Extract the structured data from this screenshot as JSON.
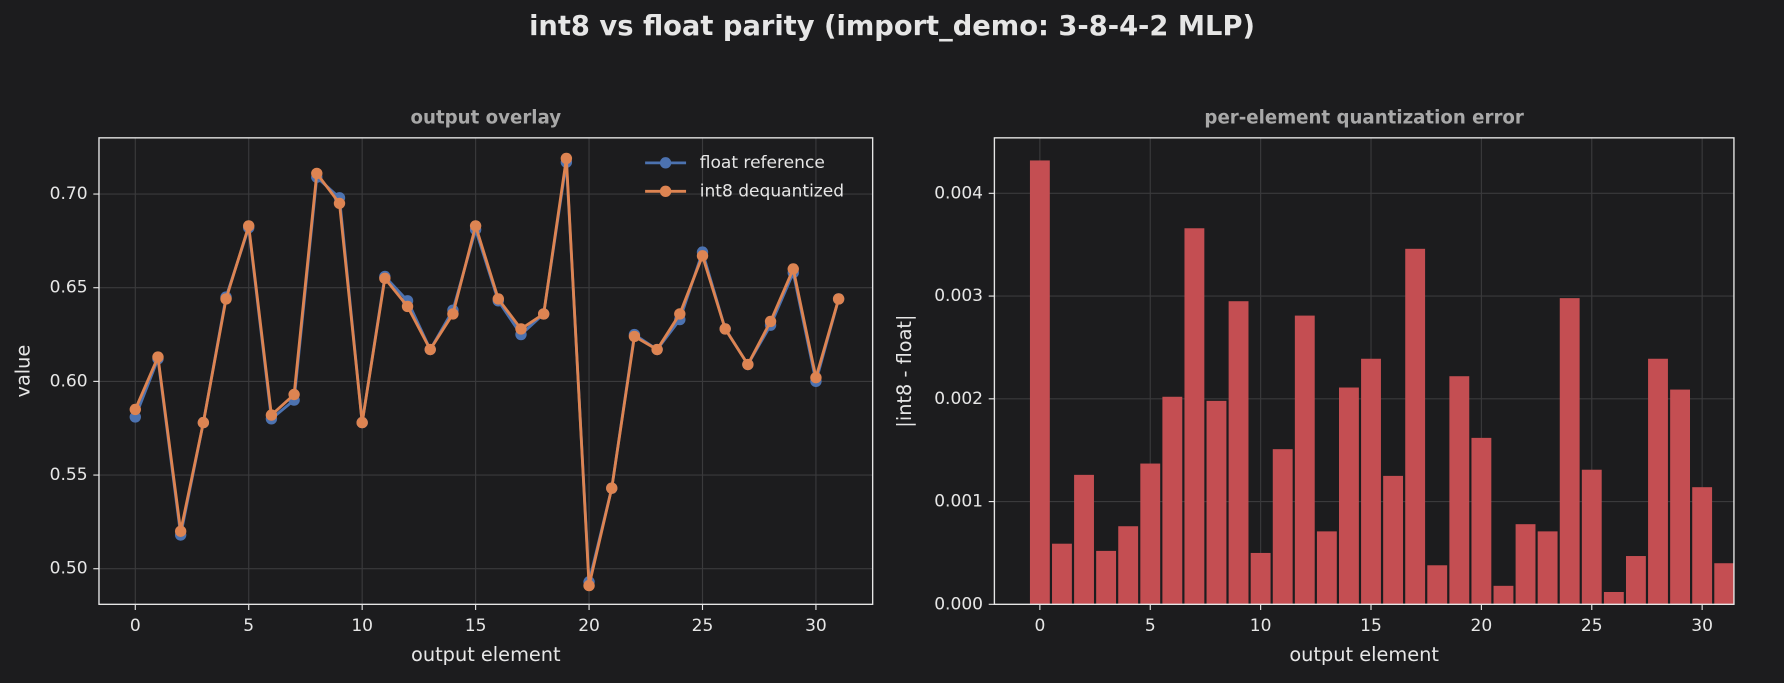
{
  "title": "int8 vs float parity  (import_demo: 3-8-4-2 MLP)",
  "chart_data": [
    {
      "type": "line",
      "title": "output overlay",
      "xlabel": "output element",
      "ylabel": "value",
      "x": [
        0,
        1,
        2,
        3,
        4,
        5,
        6,
        7,
        8,
        9,
        10,
        11,
        12,
        13,
        14,
        15,
        16,
        17,
        18,
        19,
        20,
        21,
        22,
        23,
        24,
        25,
        26,
        27,
        28,
        29,
        30,
        31
      ],
      "series": [
        {
          "name": "float reference",
          "color": "#4c72b0",
          "values": [
            0.581,
            0.612,
            0.518,
            0.578,
            0.645,
            0.682,
            0.58,
            0.59,
            0.709,
            0.698,
            0.578,
            0.656,
            0.643,
            0.617,
            0.638,
            0.681,
            0.643,
            0.625,
            0.636,
            0.717,
            0.493,
            0.543,
            0.625,
            0.617,
            0.633,
            0.669,
            0.628,
            0.609,
            0.63,
            0.658,
            0.6,
            0.644
          ]
        },
        {
          "name": "int8 dequantized",
          "color": "#dd8452",
          "values": [
            0.585,
            0.613,
            0.52,
            0.578,
            0.644,
            0.683,
            0.582,
            0.593,
            0.711,
            0.695,
            0.578,
            0.655,
            0.64,
            0.617,
            0.636,
            0.683,
            0.644,
            0.628,
            0.636,
            0.719,
            0.491,
            0.543,
            0.624,
            0.617,
            0.636,
            0.667,
            0.628,
            0.609,
            0.632,
            0.66,
            0.602,
            0.644
          ]
        }
      ],
      "xlim": [
        -1.6,
        32.5
      ],
      "xticks": [
        0,
        5,
        10,
        15,
        20,
        25,
        30
      ],
      "ylim": [
        0.481,
        0.73
      ],
      "yticks": [
        {
          "value": 0.5,
          "label": "0.50"
        },
        0.55,
        {
          "value": 0.6,
          "label": "0.60"
        },
        0.65,
        {
          "value": 0.7,
          "label": "0.70"
        }
      ],
      "grid": true,
      "legend": "upper right"
    },
    {
      "type": "bar",
      "title": "per-element quantization error",
      "xlabel": "output element",
      "ylabel": "|int8 - float|",
      "color": "#c44e52",
      "x": [
        0,
        1,
        2,
        3,
        4,
        5,
        6,
        7,
        8,
        9,
        10,
        11,
        12,
        13,
        14,
        15,
        16,
        17,
        18,
        19,
        20,
        21,
        22,
        23,
        24,
        25,
        26,
        27,
        28,
        29,
        30,
        31
      ],
      "values": [
        0.00432,
        0.00059,
        0.00126,
        0.00052,
        0.00076,
        0.00137,
        0.00202,
        0.00366,
        0.00198,
        0.00295,
        0.0005,
        0.00151,
        0.00281,
        0.00071,
        0.00211,
        0.00239,
        0.00125,
        0.00346,
        0.00038,
        0.00222,
        0.00162,
        0.00018,
        0.00078,
        0.00071,
        0.00298,
        0.00131,
        0.00012,
        0.00047,
        0.00239,
        0.00209,
        0.00114,
        0.0004
      ],
      "xlim": [
        -2.06,
        31.44
      ],
      "xticks": [
        0,
        5,
        10,
        15,
        20,
        25,
        30
      ],
      "ylim": [
        0,
        0.00454
      ],
      "yticks": [
        {
          "value": 0,
          "label": "0.000"
        },
        {
          "value": 0.001,
          "label": "0.001"
        },
        {
          "value": 0.002,
          "label": "0.002"
        },
        {
          "value": 0.003,
          "label": "0.003"
        },
        {
          "value": 0.004,
          "label": "0.004"
        }
      ],
      "grid": true
    }
  ]
}
